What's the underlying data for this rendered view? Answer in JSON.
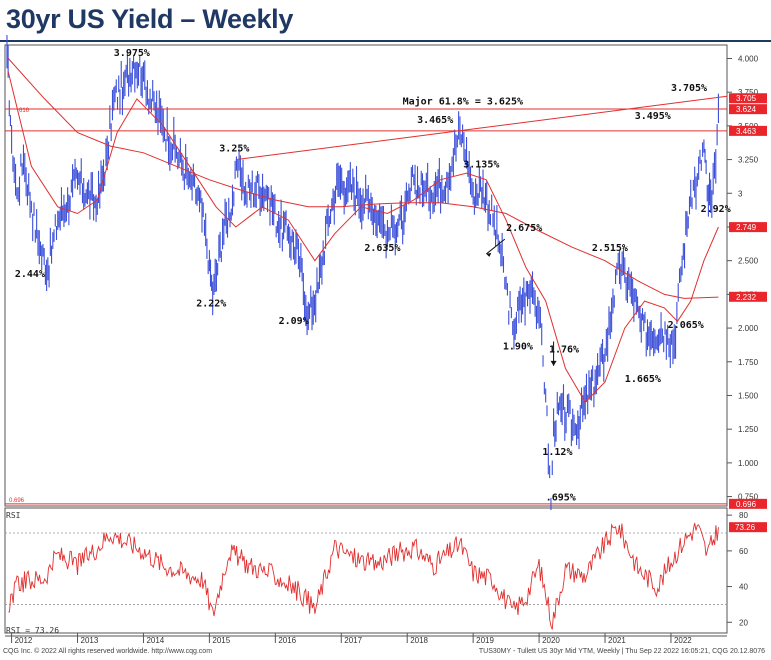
{
  "title": "30yr US Yield – Weekly",
  "footer": {
    "left": "CQG Inc. © 2022 All rights reserved worldwide. http://www.cqg.com",
    "right": "TUS30MY - Tullett US 30yr Mid YTM, Weekly | Thu Sep 22 2022 16:05:21, CQG 20.12.8076"
  },
  "colors": {
    "price": "#3b4fd8",
    "ma": "#e03030",
    "rsi": "#e03030",
    "title": "#1f3864",
    "tag_bg": "#e8262c"
  },
  "chart_data": [
    {
      "type": "line",
      "name": "price",
      "x_axis": {
        "labels": [
          "2012",
          "2013",
          "2014",
          "2015",
          "2016",
          "2017",
          "2018",
          "2019",
          "2020",
          "2021",
          "2022"
        ]
      },
      "y_axis": {
        "ticks": [
          4.0,
          3.75,
          3.5,
          3.25,
          3.0,
          2.75,
          2.5,
          2.25,
          2.0,
          1.75,
          1.5,
          1.25,
          1.0,
          0.75
        ],
        "tick_labels": [
          "4.000",
          "3.750",
          "3.500",
          "3.250",
          "3",
          "2.750",
          "2.500",
          "2.250",
          "2.000",
          "1.750",
          "1.500",
          "1.250",
          "1.000",
          "0.750"
        ],
        "ylim": [
          0.68,
          4.1
        ]
      },
      "price_points": [
        [
          2011.93,
          4.05
        ],
        [
          2012.0,
          3.4
        ],
        [
          2012.08,
          3.0
        ],
        [
          2012.18,
          3.25
        ],
        [
          2012.3,
          2.9
        ],
        [
          2012.42,
          2.6
        ],
        [
          2012.55,
          2.44
        ],
        [
          2012.7,
          2.8
        ],
        [
          2012.85,
          2.95
        ],
        [
          2013.0,
          3.1
        ],
        [
          2013.15,
          3.0
        ],
        [
          2013.3,
          2.9
        ],
        [
          2013.45,
          3.3
        ],
        [
          2013.55,
          3.7
        ],
        [
          2013.7,
          3.8
        ],
        [
          2013.85,
          3.975
        ],
        [
          2014.0,
          3.9
        ],
        [
          2014.1,
          3.7
        ],
        [
          2014.3,
          3.5
        ],
        [
          2014.5,
          3.3
        ],
        [
          2014.7,
          3.1
        ],
        [
          2014.85,
          2.95
        ],
        [
          2015.0,
          2.5
        ],
        [
          2015.05,
          2.22
        ],
        [
          2015.2,
          2.7
        ],
        [
          2015.35,
          2.95
        ],
        [
          2015.45,
          3.25
        ],
        [
          2015.55,
          3.0
        ],
        [
          2015.75,
          3.05
        ],
        [
          2015.9,
          3.0
        ],
        [
          2016.05,
          2.75
        ],
        [
          2016.2,
          2.7
        ],
        [
          2016.35,
          2.55
        ],
        [
          2016.5,
          2.09
        ],
        [
          2016.65,
          2.3
        ],
        [
          2016.8,
          2.8
        ],
        [
          2016.95,
          3.1
        ],
        [
          2017.1,
          3.05
        ],
        [
          2017.25,
          3.0
        ],
        [
          2017.45,
          2.9
        ],
        [
          2017.6,
          2.8
        ],
        [
          2017.7,
          2.7
        ],
        [
          2017.8,
          2.75
        ],
        [
          2017.95,
          2.8
        ],
        [
          2018.1,
          3.1
        ],
        [
          2018.25,
          3.0
        ],
        [
          2018.45,
          3.05
        ],
        [
          2018.6,
          3.1
        ],
        [
          2018.8,
          3.465
        ],
        [
          2018.9,
          3.3
        ],
        [
          2019.0,
          3.0
        ],
        [
          2019.15,
          3.05
        ],
        [
          2019.3,
          2.8
        ],
        [
          2019.4,
          2.6
        ],
        [
          2019.6,
          2.0
        ],
        [
          2019.75,
          2.2
        ],
        [
          2019.9,
          2.3
        ],
        [
          2020.0,
          2.1
        ],
        [
          2020.1,
          1.5
        ],
        [
          2020.18,
          0.695
        ],
        [
          2020.22,
          1.3
        ],
        [
          2020.35,
          1.4
        ],
        [
          2020.55,
          1.25
        ],
        [
          2020.7,
          1.45
        ],
        [
          2020.85,
          1.6
        ],
        [
          2021.0,
          1.8
        ],
        [
          2021.12,
          2.2
        ],
        [
          2021.22,
          2.45
        ],
        [
          2021.4,
          2.3
        ],
        [
          2021.55,
          2.0
        ],
        [
          2021.7,
          1.95
        ],
        [
          2021.85,
          2.0
        ],
        [
          2021.95,
          1.95
        ],
        [
          2022.05,
          1.9
        ],
        [
          2022.15,
          2.4
        ],
        [
          2022.3,
          3.0
        ],
        [
          2022.4,
          3.1
        ],
        [
          2022.5,
          3.35
        ],
        [
          2022.55,
          3.0
        ],
        [
          2022.62,
          2.92
        ],
        [
          2022.68,
          3.2
        ],
        [
          2022.72,
          3.63
        ]
      ],
      "ma_fast": [
        [
          2011.95,
          3.9
        ],
        [
          2012.3,
          3.2
        ],
        [
          2012.7,
          2.9
        ],
        [
          2013.0,
          2.85
        ],
        [
          2013.3,
          2.95
        ],
        [
          2013.6,
          3.45
        ],
        [
          2013.9,
          3.7
        ],
        [
          2014.3,
          3.5
        ],
        [
          2014.7,
          3.2
        ],
        [
          2015.1,
          2.9
        ],
        [
          2015.4,
          2.75
        ],
        [
          2015.8,
          2.9
        ],
        [
          2016.2,
          2.8
        ],
        [
          2016.6,
          2.5
        ],
        [
          2016.9,
          2.7
        ],
        [
          2017.3,
          2.9
        ],
        [
          2017.7,
          2.85
        ],
        [
          2018.1,
          2.95
        ],
        [
          2018.5,
          3.1
        ],
        [
          2018.9,
          3.15
        ],
        [
          2019.2,
          3.1
        ],
        [
          2019.5,
          2.8
        ],
        [
          2019.8,
          2.45
        ],
        [
          2020.1,
          2.2
        ],
        [
          2020.4,
          1.7
        ],
        [
          2020.7,
          1.45
        ],
        [
          2021.0,
          1.6
        ],
        [
          2021.3,
          2.0
        ],
        [
          2021.6,
          2.2
        ],
        [
          2021.9,
          2.15
        ],
        [
          2022.1,
          2.05
        ],
        [
          2022.3,
          2.2
        ],
        [
          2022.5,
          2.5
        ],
        [
          2022.72,
          2.75
        ]
      ],
      "ma_slow": [
        [
          2011.95,
          4.0
        ],
        [
          2012.5,
          3.7
        ],
        [
          2013.0,
          3.45
        ],
        [
          2013.5,
          3.35
        ],
        [
          2014.0,
          3.3
        ],
        [
          2014.5,
          3.2
        ],
        [
          2015.0,
          3.1
        ],
        [
          2015.5,
          3.02
        ],
        [
          2016.0,
          2.95
        ],
        [
          2016.5,
          2.9
        ],
        [
          2017.0,
          2.9
        ],
        [
          2017.5,
          2.92
        ],
        [
          2018.0,
          2.93
        ],
        [
          2018.5,
          2.93
        ],
        [
          2019.0,
          2.9
        ],
        [
          2019.5,
          2.85
        ],
        [
          2020.0,
          2.72
        ],
        [
          2020.5,
          2.6
        ],
        [
          2021.0,
          2.5
        ],
        [
          2021.5,
          2.35
        ],
        [
          2021.9,
          2.25
        ],
        [
          2022.2,
          2.22
        ],
        [
          2022.72,
          2.23
        ]
      ],
      "annotations": [
        "3.975%",
        "3.25%",
        "3.465%",
        "3.135%",
        "2.675%",
        "2.44%",
        "2.22%",
        "2.09%",
        "2.635%",
        "1.90%",
        "1.76%",
        "2.515%",
        "3.495%",
        "3.705%",
        "2.92%",
        "2.065%",
        "1.665%",
        "1.12%",
        ".695%",
        "Major 61.8% = 3.625%"
      ],
      "horizontal_levels": [
        3.625,
        3.463
      ],
      "right_tags": [
        "3.705",
        "3.624",
        "3.463",
        "2.749",
        "2.232",
        "0.696"
      ],
      "left_tags": [
        "616",
        "0.696"
      ]
    },
    {
      "type": "line",
      "name": "RSI",
      "y_axis": {
        "ticks": [
          80,
          60,
          40,
          20
        ],
        "ylim": [
          14,
          84
        ]
      },
      "reference_lines": [
        70,
        30
      ],
      "label": "RSI",
      "current_value": "73.26",
      "tag": "73.26"
    }
  ]
}
